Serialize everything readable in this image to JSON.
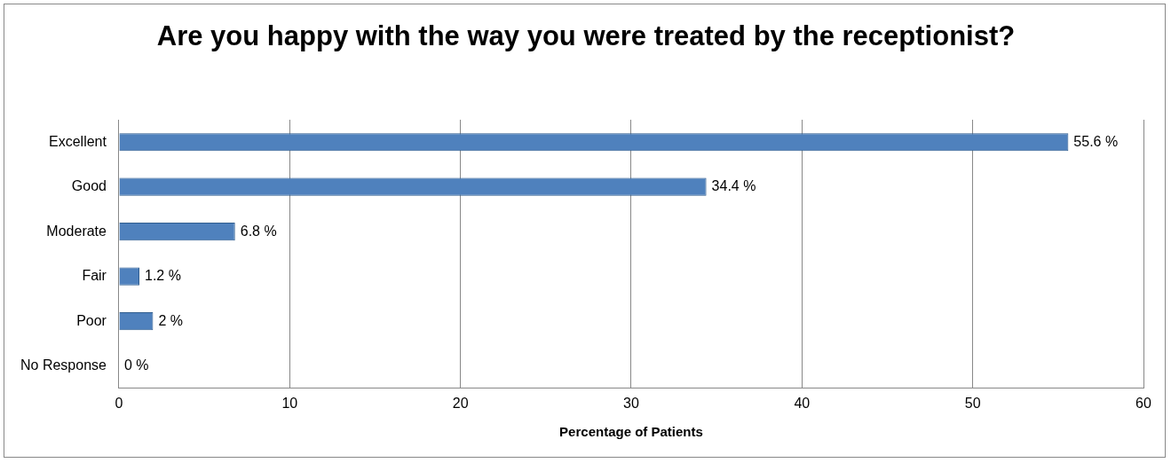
{
  "chart_data": {
    "type": "bar",
    "orientation": "horizontal",
    "title": "Are you happy with the way you were treated by the receptionist?",
    "xlabel": "Percentage of Patients",
    "categories": [
      "Excellent",
      "Good",
      "Moderate",
      "Fair",
      "Poor",
      "No Response"
    ],
    "values": [
      55.6,
      34.4,
      6.8,
      1.2,
      2,
      0
    ],
    "value_labels": [
      "55.6 %",
      "34.4 %",
      "6.8 %",
      "1.2 %",
      "2 %",
      "0 %"
    ],
    "color": "#4f81bd",
    "xlim": [
      0,
      60
    ],
    "xticks": [
      0,
      10,
      20,
      30,
      40,
      50,
      60
    ],
    "grid": "x",
    "legend": false
  }
}
